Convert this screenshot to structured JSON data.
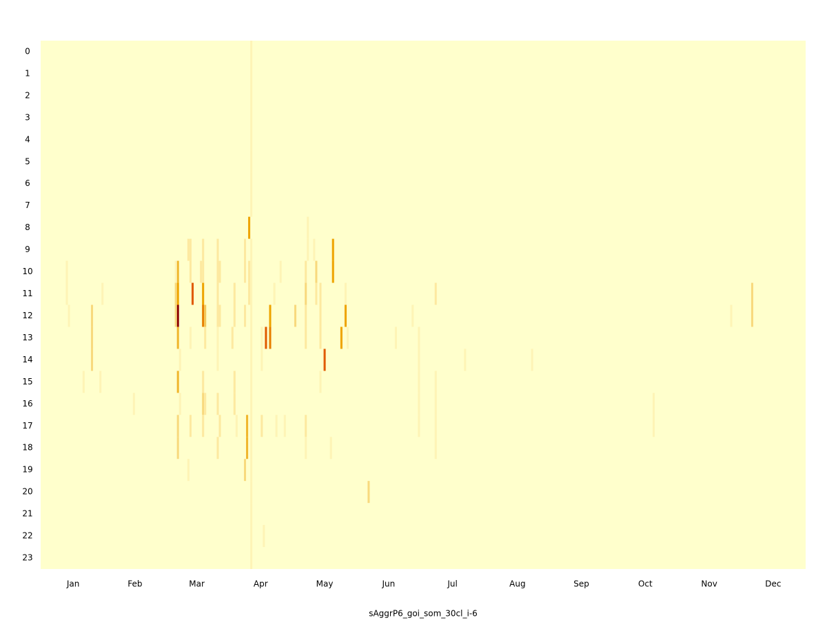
{
  "chart_data": {
    "type": "heatmap",
    "xlabel": "sAggrP6_goi_som_30cl_i-6",
    "xlim": [
      0,
      365
    ],
    "xticks": [
      {
        "value": 15.5,
        "label": "Jan"
      },
      {
        "value": 45,
        "label": "Feb"
      },
      {
        "value": 74.5,
        "label": "Mar"
      },
      {
        "value": 105,
        "label": "Apr"
      },
      {
        "value": 135.5,
        "label": "May"
      },
      {
        "value": 166,
        "label": "Jun"
      },
      {
        "value": 196.5,
        "label": "Jul"
      },
      {
        "value": 227.5,
        "label": "Aug"
      },
      {
        "value": 258,
        "label": "Sep"
      },
      {
        "value": 288.5,
        "label": "Oct"
      },
      {
        "value": 319,
        "label": "Nov"
      },
      {
        "value": 349.5,
        "label": "Dec"
      }
    ],
    "rows": [
      "0",
      "1",
      "2",
      "3",
      "4",
      "5",
      "6",
      "7",
      "8",
      "9",
      "10",
      "11",
      "12",
      "13",
      "14",
      "15",
      "16",
      "17",
      "18",
      "19",
      "20",
      "21",
      "22",
      "23"
    ],
    "zlim": [
      0,
      10
    ],
    "colors": [
      "#ffffcc",
      "#fde9a0",
      "#f2c85a",
      "#eea400",
      "#e05a00",
      "#8b0000"
    ],
    "cells": [
      [
        100,
        0,
        1
      ],
      [
        100,
        1,
        1
      ],
      [
        100,
        2,
        1
      ],
      [
        100,
        3,
        1
      ],
      [
        100,
        4,
        1
      ],
      [
        100,
        5,
        1
      ],
      [
        100,
        6,
        1
      ],
      [
        100,
        7,
        1
      ],
      [
        100,
        9,
        1
      ],
      [
        100,
        10,
        1
      ],
      [
        100,
        11,
        1
      ],
      [
        100,
        12,
        1
      ],
      [
        100,
        13,
        1
      ],
      [
        100,
        14,
        1
      ],
      [
        100,
        15,
        1
      ],
      [
        100,
        16,
        1
      ],
      [
        100,
        17,
        1
      ],
      [
        100,
        18,
        1
      ],
      [
        100,
        19,
        1
      ],
      [
        100,
        20,
        1
      ],
      [
        100,
        21,
        1
      ],
      [
        100,
        22,
        1
      ],
      [
        100,
        23,
        1
      ],
      [
        99,
        8,
        6
      ],
      [
        99,
        10,
        2
      ],
      [
        99,
        11,
        2
      ],
      [
        139,
        9,
        6
      ],
      [
        139,
        10,
        6
      ],
      [
        65,
        10,
        5
      ],
      [
        65,
        11,
        6
      ],
      [
        65,
        12,
        10
      ],
      [
        65,
        13,
        5
      ],
      [
        65,
        15,
        5
      ],
      [
        65,
        17,
        3
      ],
      [
        65,
        18,
        3
      ],
      [
        64,
        11,
        3
      ],
      [
        64,
        12,
        3
      ],
      [
        64,
        10,
        1
      ],
      [
        66,
        14,
        1
      ],
      [
        66,
        16,
        1
      ],
      [
        72,
        11,
        8
      ],
      [
        71,
        9,
        2
      ],
      [
        70,
        9,
        2
      ],
      [
        71,
        10,
        2
      ],
      [
        71,
        17,
        2
      ],
      [
        71,
        13,
        1
      ],
      [
        70,
        19,
        1
      ],
      [
        77,
        11,
        6
      ],
      [
        77,
        12,
        7
      ],
      [
        77,
        10,
        2
      ],
      [
        77,
        9,
        2
      ],
      [
        77,
        15,
        2
      ],
      [
        77,
        16,
        3
      ],
      [
        77,
        17,
        2
      ],
      [
        78,
        12,
        4
      ],
      [
        78,
        13,
        2
      ],
      [
        78,
        16,
        2
      ],
      [
        76,
        10,
        2
      ],
      [
        107,
        13,
        8
      ],
      [
        109,
        13,
        7
      ],
      [
        109,
        12,
        6
      ],
      [
        105,
        13,
        1
      ],
      [
        105,
        14,
        1
      ],
      [
        106,
        22,
        1
      ],
      [
        105,
        17,
        2
      ],
      [
        135,
        14,
        8
      ],
      [
        143,
        13,
        6
      ],
      [
        145,
        12,
        6
      ],
      [
        98,
        17,
        5
      ],
      [
        98,
        18,
        5
      ],
      [
        97,
        19,
        3
      ],
      [
        97,
        9,
        2
      ],
      [
        97,
        10,
        2
      ],
      [
        97,
        12,
        2
      ],
      [
        24,
        12,
        3
      ],
      [
        24,
        13,
        3
      ],
      [
        24,
        14,
        3
      ],
      [
        156,
        20,
        3
      ],
      [
        339,
        11,
        3
      ],
      [
        339,
        12,
        3
      ],
      [
        12,
        10,
        1
      ],
      [
        12,
        11,
        1
      ],
      [
        13,
        12,
        1
      ],
      [
        29,
        11,
        1
      ],
      [
        20,
        15,
        1
      ],
      [
        28,
        15,
        1
      ],
      [
        44,
        16,
        1
      ],
      [
        84,
        9,
        2
      ],
      [
        84,
        10,
        2
      ],
      [
        84,
        11,
        2
      ],
      [
        84,
        12,
        2
      ],
      [
        85,
        10,
        2
      ],
      [
        85,
        12,
        2
      ],
      [
        84,
        13,
        1
      ],
      [
        84,
        14,
        1
      ],
      [
        84,
        16,
        2
      ],
      [
        85,
        17,
        2
      ],
      [
        84,
        18,
        2
      ],
      [
        92,
        11,
        2
      ],
      [
        92,
        12,
        2
      ],
      [
        92,
        15,
        2
      ],
      [
        92,
        16,
        2
      ],
      [
        91,
        13,
        2
      ],
      [
        93,
        17,
        1
      ],
      [
        126,
        10,
        2
      ],
      [
        126,
        11,
        3
      ],
      [
        126,
        12,
        2
      ],
      [
        126,
        13,
        2
      ],
      [
        126,
        17,
        2
      ],
      [
        126,
        18,
        1
      ],
      [
        127,
        8,
        1
      ],
      [
        127,
        9,
        1
      ],
      [
        131,
        10,
        3
      ],
      [
        131,
        11,
        2
      ],
      [
        133,
        11,
        2
      ],
      [
        133,
        12,
        2
      ],
      [
        133,
        13,
        2
      ],
      [
        133,
        15,
        1
      ],
      [
        130,
        9,
        1
      ],
      [
        121,
        12,
        3
      ],
      [
        114,
        10,
        1
      ],
      [
        111,
        11,
        1
      ],
      [
        116,
        17,
        1
      ],
      [
        112,
        17,
        1
      ],
      [
        169,
        13,
        1
      ],
      [
        177,
        12,
        1
      ],
      [
        180,
        13,
        1
      ],
      [
        180,
        14,
        1
      ],
      [
        180,
        15,
        1
      ],
      [
        180,
        16,
        1
      ],
      [
        180,
        17,
        1
      ],
      [
        188,
        11,
        2
      ],
      [
        188,
        15,
        1
      ],
      [
        188,
        16,
        1
      ],
      [
        188,
        17,
        1
      ],
      [
        188,
        18,
        1
      ],
      [
        202,
        14,
        1
      ],
      [
        234,
        14,
        1
      ],
      [
        292,
        16,
        1
      ],
      [
        292,
        17,
        1
      ],
      [
        329,
        12,
        1
      ],
      [
        138,
        18,
        1
      ],
      [
        145,
        11,
        1
      ],
      [
        146,
        13,
        1
      ]
    ]
  }
}
